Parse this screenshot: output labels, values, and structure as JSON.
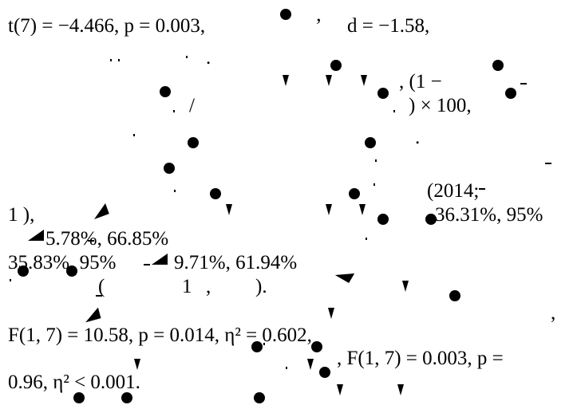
{
  "fragments": [
    {
      "text": "t(7) = −4.466, p = 0.003,"
    },
    {
      "text": "’"
    },
    {
      "text": "d = −1.58,"
    },
    {
      "text": ".",
      "comment": "row2 period"
    },
    {
      "text": ", (1 −"
    },
    {
      "text": "/"
    },
    {
      "text": ") × 100,"
    },
    {
      "text": "."
    },
    {
      "text": "(2014;"
    },
    {
      "text": "1 ),"
    },
    {
      "text": "36.31%, 95%"
    },
    {
      "text": "5.78%, 66.85%"
    },
    {
      "text": "35.83%, 95%"
    },
    {
      "text": "9.71%, 61.94%"
    },
    {
      "text": "("
    },
    {
      "text": "1"
    },
    {
      "text": ","
    },
    {
      "text": ")."
    },
    {
      "text": ","
    },
    {
      "text": "F(1, 7) = 10.58, p = 0.014, η² = 0.602,"
    },
    {
      "text": ", F(1, 7) = 0.003, p ="
    },
    {
      "text": "0.96, η² < 0.001."
    }
  ]
}
